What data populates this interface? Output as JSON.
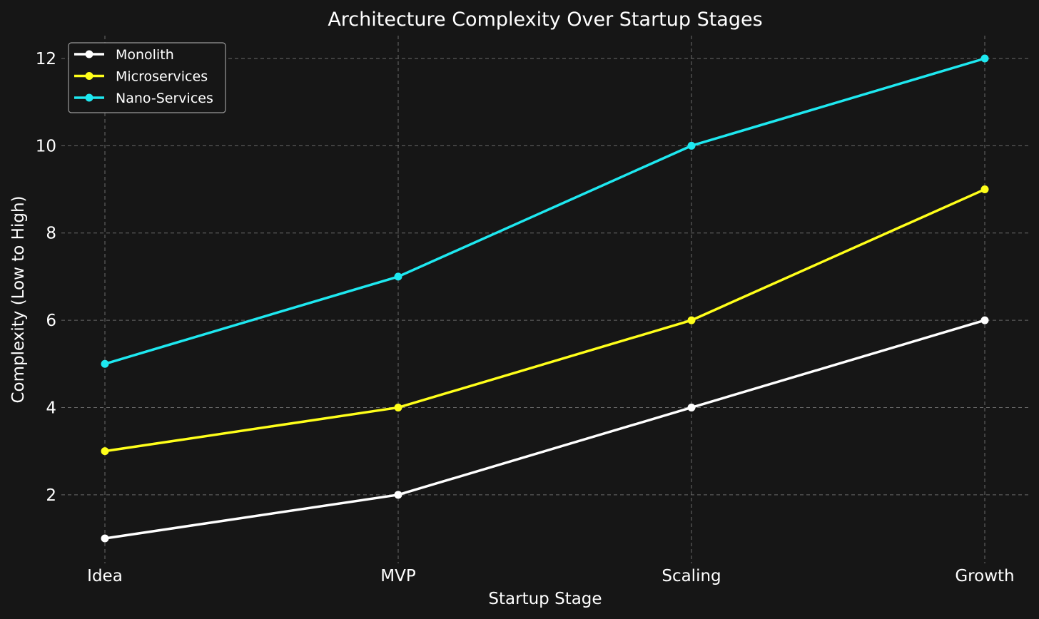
{
  "chart_data": {
    "type": "line",
    "title": "Architecture Complexity Over Startup Stages",
    "xlabel": "Startup Stage",
    "ylabel": "Complexity (Low to High)",
    "categories": [
      "Idea",
      "MVP",
      "Scaling",
      "Growth"
    ],
    "ylim": [
      0.5,
      12.5
    ],
    "yticks": [
      2,
      4,
      6,
      8,
      10,
      12
    ],
    "grid": true,
    "legend_position": "top-left",
    "series": [
      {
        "name": "Monolith",
        "values": [
          1,
          2,
          4,
          6
        ],
        "color": "#ffffff"
      },
      {
        "name": "Microservices",
        "values": [
          3,
          4,
          6,
          9
        ],
        "color": "#ffff1a"
      },
      {
        "name": "Nano-Services",
        "values": [
          5,
          7,
          10,
          12
        ],
        "color": "#1ee8f0"
      }
    ]
  },
  "colors": {
    "background": "#161616",
    "text": "#ffffff",
    "grid": "#6a6a6a"
  }
}
